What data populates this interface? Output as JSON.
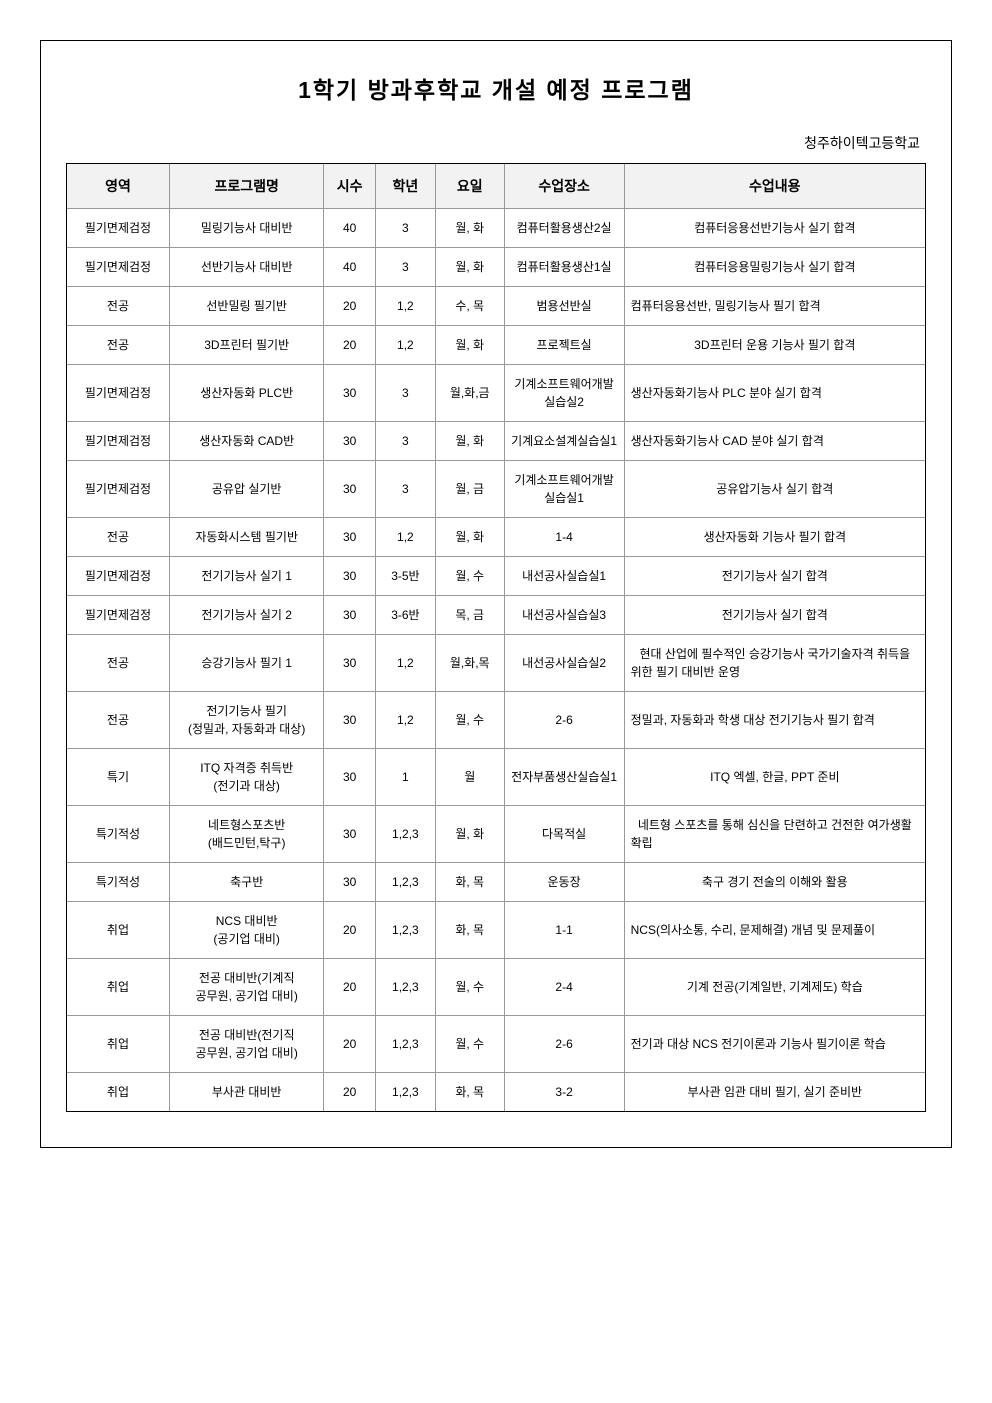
{
  "title": "1학기 방과후학교 개설 예정 프로그램",
  "subtitle": "청주하이텍고등학교",
  "columns": [
    "영역",
    "프로그램명",
    "시수",
    "학년",
    "요일",
    "수업장소",
    "수업내용"
  ],
  "rows": [
    {
      "area": "필기면제검정",
      "name": "밀링기능사 대비반",
      "hours": "40",
      "grade": "3",
      "day": "월, 화",
      "place": "컴퓨터활용생산2실",
      "desc": "컴퓨터응용선반기능사 실기 합격"
    },
    {
      "area": "필기면제검정",
      "name": "선반기능사 대비반",
      "hours": "40",
      "grade": "3",
      "day": "월, 화",
      "place": "컴퓨터활용생산1실",
      "desc": "컴퓨터응용밀링기능사 실기 합격"
    },
    {
      "area": "전공",
      "name": "선반밀링 필기반",
      "hours": "20",
      "grade": "1,2",
      "day": "수, 목",
      "place": "범용선반실",
      "desc": "컴퓨터응용선반, 밀링기능사 필기 합격",
      "justify": true
    },
    {
      "area": "전공",
      "name": "3D프린터 필기반",
      "hours": "20",
      "grade": "1,2",
      "day": "월, 화",
      "place": "프로젝트실",
      "desc": "3D프린터 운용 기능사 필기 합격"
    },
    {
      "area": "필기면제검정",
      "name": "생산자동화 PLC반",
      "hours": "30",
      "grade": "3",
      "day": "월,화,금",
      "place": "기계소프트웨어개발 실습실2",
      "desc": "생산자동화기능사 PLC 분야 실기 합격",
      "justify": true
    },
    {
      "area": "필기면제검정",
      "name": "생산자동화 CAD반",
      "hours": "30",
      "grade": "3",
      "day": "월, 화",
      "place": "기계요소설계실습실1",
      "desc": "생산자동화기능사 CAD 분야 실기 합격",
      "justify": true
    },
    {
      "area": "필기면제검정",
      "name": "공유압 실기반",
      "hours": "30",
      "grade": "3",
      "day": "월, 금",
      "place": "기계소프트웨어개발 실습실1",
      "desc": "공유압기능사 실기 합격"
    },
    {
      "area": "전공",
      "name": "자동화시스템 필기반",
      "hours": "30",
      "grade": "1,2",
      "day": "월, 화",
      "place": "1-4",
      "desc": "생산자동화 기능사 필기 합격"
    },
    {
      "area": "필기면제검정",
      "name": "전기기능사 실기 1",
      "hours": "30",
      "grade": "3-5반",
      "day": "월, 수",
      "place": "내선공사실습실1",
      "desc": "전기기능사 실기 합격"
    },
    {
      "area": "필기면제검정",
      "name": "전기기능사 실기 2",
      "hours": "30",
      "grade": "3-6반",
      "day": "목, 금",
      "place": "내선공사실습실3",
      "desc": "전기기능사 실기 합격"
    },
    {
      "area": "전공",
      "name": "승강기능사 필기 1",
      "hours": "30",
      "grade": "1,2",
      "day": "월,화,목",
      "place": "내선공사실습실2",
      "desc": "현대 산업에 필수적인 승강기능사 국가기술자격 취득을 위한 필기 대비반 운영",
      "justify": true
    },
    {
      "area": "전공",
      "name": "전기기능사 필기\n(정밀과, 자동화과 대상)",
      "hours": "30",
      "grade": "1,2",
      "day": "월, 수",
      "place": "2-6",
      "desc": "정밀과, 자동화과 학생 대상 전기기능사 필기 합격",
      "justify": true
    },
    {
      "area": "특기",
      "name": "ITQ 자격증 취득반\n(전기과 대상)",
      "hours": "30",
      "grade": "1",
      "day": "월",
      "place": "전자부품생산실습실1",
      "desc": "ITQ 엑셀, 한글, PPT 준비"
    },
    {
      "area": "특기적성",
      "name": "네트형스포츠반\n(배드민턴,탁구)",
      "hours": "30",
      "grade": "1,2,3",
      "day": "월, 화",
      "place": "다목적실",
      "desc": "네트형 스포츠를 통해 심신을 단련하고 건전한 여가생활 확립",
      "justify": true
    },
    {
      "area": "특기적성",
      "name": "축구반",
      "hours": "30",
      "grade": "1,2,3",
      "day": "화, 목",
      "place": "운동장",
      "desc": "축구 경기 전술의 이해와 활용"
    },
    {
      "area": "취업",
      "name": "NCS 대비반\n(공기업 대비)",
      "hours": "20",
      "grade": "1,2,3",
      "day": "화, 목",
      "place": "1-1",
      "desc": "NCS(의사소통, 수리, 문제해결) 개념 및 문제풀이",
      "justify": true
    },
    {
      "area": "취업",
      "name": "전공 대비반(기계직\n공무원, 공기업 대비)",
      "hours": "20",
      "grade": "1,2,3",
      "day": "월, 수",
      "place": "2-4",
      "desc": "기계 전공(기계일반, 기계제도) 학습"
    },
    {
      "area": "취업",
      "name": "전공 대비반(전기직\n공무원, 공기업 대비)",
      "hours": "20",
      "grade": "1,2,3",
      "day": "월, 수",
      "place": "2-6",
      "desc": "전기과 대상 NCS 전기이론과 기능사 필기이론 학습",
      "justify": true
    },
    {
      "area": "취업",
      "name": "부사관 대비반",
      "hours": "20",
      "grade": "1,2,3",
      "day": "화, 목",
      "place": "3-2",
      "desc": "부사관 임관 대비 필기, 실기 준비반"
    }
  ]
}
